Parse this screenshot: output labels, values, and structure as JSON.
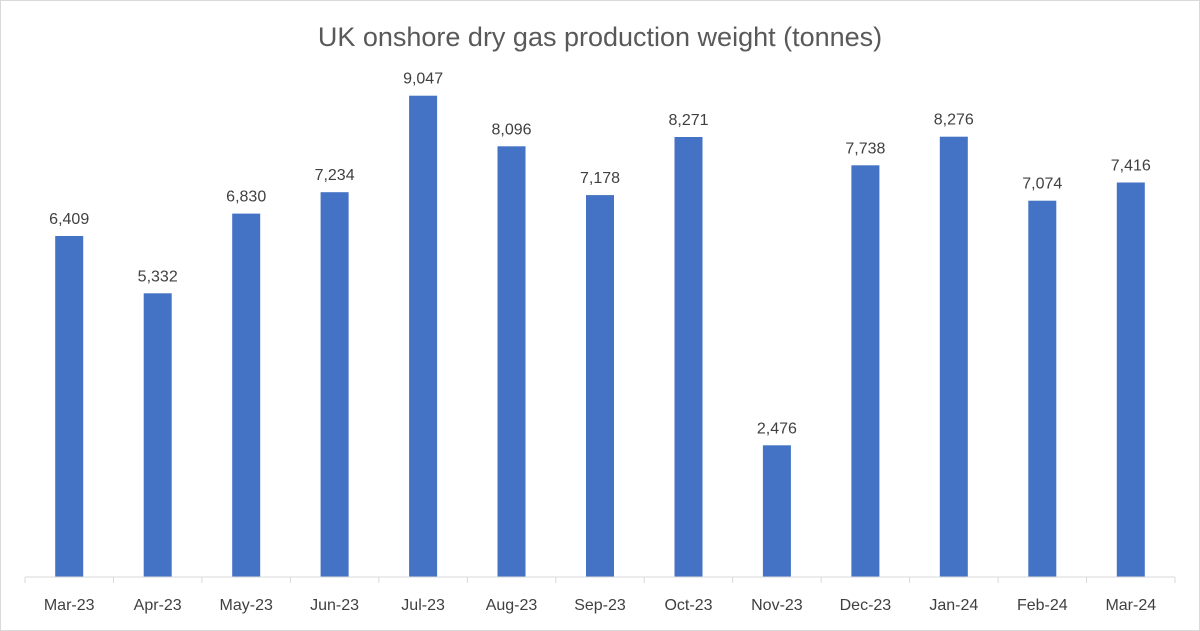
{
  "chart_data": {
    "type": "bar",
    "title": "UK onshore dry gas production weight (tonnes)",
    "categories": [
      "Mar-23",
      "Apr-23",
      "May-23",
      "Jun-23",
      "Jul-23",
      "Aug-23",
      "Sep-23",
      "Oct-23",
      "Nov-23",
      "Dec-23",
      "Jan-24",
      "Feb-24",
      "Mar-24"
    ],
    "values": [
      6409,
      5332,
      6830,
      7234,
      9047,
      8096,
      7178,
      8271,
      2476,
      7738,
      8276,
      7074,
      7416
    ],
    "data_labels": [
      "6,409",
      "5,332",
      "6,830",
      "7,234",
      "9,047",
      "8,096",
      "7,178",
      "8,271",
      "2,476",
      "7,738",
      "8,276",
      "7,074",
      "7,416"
    ],
    "xlabel": "",
    "ylabel": "",
    "ylim": [
      0,
      10000
    ],
    "grid": false,
    "legend": "none",
    "bar_color": "#4472c4",
    "axis_color": "#d9d9d9",
    "text_color": "#404040",
    "title_color": "#595959"
  }
}
